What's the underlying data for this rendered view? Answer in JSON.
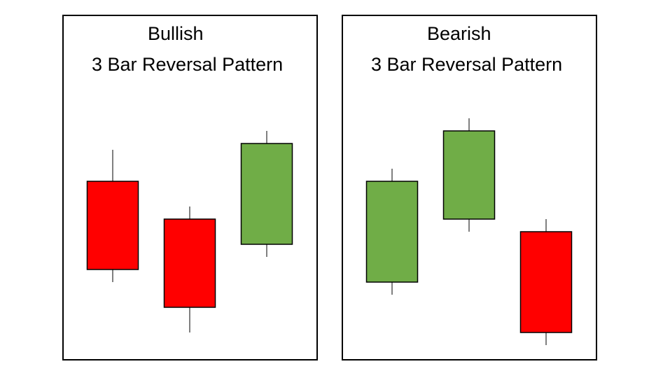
{
  "panels": [
    {
      "title_line1": "Bullish",
      "title_line2": "3 Bar Reversal Pattern",
      "candles": [
        {
          "color": "#ff0000",
          "high": 0.62,
          "low": 0.2,
          "body_top": 0.52,
          "body_bottom": 0.24
        },
        {
          "color": "#ff0000",
          "high": 0.44,
          "low": 0.04,
          "body_top": 0.4,
          "body_bottom": 0.12
        },
        {
          "color": "#70ad47",
          "high": 0.68,
          "low": 0.28,
          "body_top": 0.64,
          "body_bottom": 0.32
        }
      ]
    },
    {
      "title_line1": "Bearish",
      "title_line2": "3 Bar Reversal Pattern",
      "candles": [
        {
          "color": "#70ad47",
          "high": 0.56,
          "low": 0.16,
          "body_top": 0.52,
          "body_bottom": 0.2
        },
        {
          "color": "#70ad47",
          "high": 0.72,
          "low": 0.36,
          "body_top": 0.68,
          "body_bottom": 0.4
        },
        {
          "color": "#ff0000",
          "high": 0.4,
          "low": 0.0,
          "body_top": 0.36,
          "body_bottom": 0.04
        }
      ]
    }
  ]
}
